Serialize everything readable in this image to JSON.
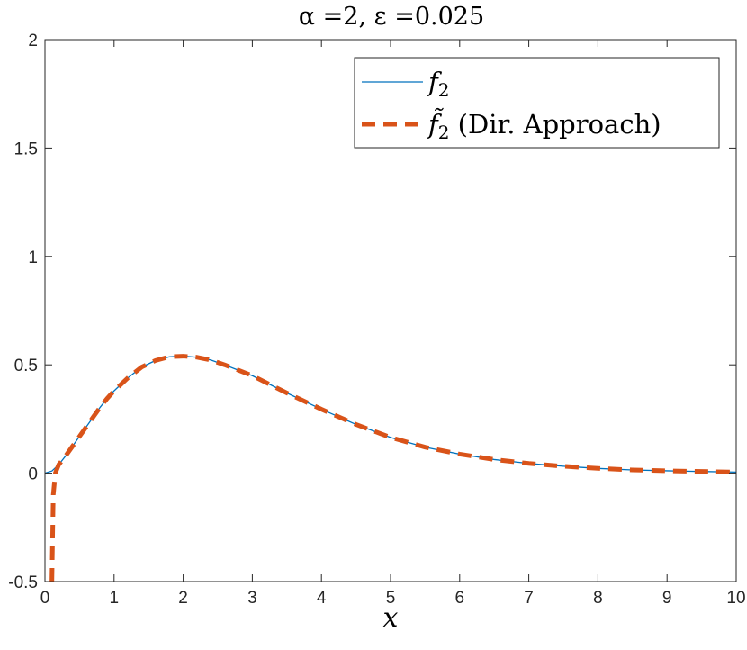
{
  "chart_data": {
    "type": "line",
    "title": "α =2, ε =0.025",
    "xlabel": "x",
    "ylabel": "",
    "xlim": [
      0,
      10
    ],
    "ylim": [
      -0.5,
      2
    ],
    "xticks": [
      0,
      1,
      2,
      3,
      4,
      5,
      6,
      7,
      8,
      9,
      10
    ],
    "xtick_labels": [
      "0",
      "1",
      "2",
      "3",
      "4",
      "5",
      "6",
      "7",
      "8",
      "9",
      "10"
    ],
    "yticks": [
      -0.5,
      0,
      0.5,
      1,
      1.5,
      2
    ],
    "ytick_labels": [
      "-0.5",
      "0",
      "0.5",
      "1",
      "1.5",
      "2"
    ],
    "grid": false,
    "legend_position": "top-right",
    "series": [
      {
        "name": "f2",
        "legend_symbol": "f",
        "legend_subscript": "2",
        "legend_suffix": "",
        "color": "#0072BD",
        "style": "solid",
        "x": [
          0,
          0.1,
          0.2,
          0.3,
          0.4,
          0.5,
          0.6,
          0.7,
          0.8,
          0.9,
          1.0,
          1.2,
          1.4,
          1.6,
          1.8,
          2.0,
          2.2,
          2.4,
          2.6,
          2.8,
          3.0,
          3.5,
          4.0,
          4.5,
          5.0,
          5.5,
          6.0,
          6.5,
          7.0,
          7.5,
          8.0,
          8.5,
          9.0,
          9.5,
          10.0
        ],
        "y": [
          0,
          0.01,
          0.04,
          0.08,
          0.125,
          0.17,
          0.215,
          0.26,
          0.305,
          0.345,
          0.38,
          0.44,
          0.49,
          0.52,
          0.537,
          0.54,
          0.535,
          0.522,
          0.5,
          0.475,
          0.45,
          0.37,
          0.295,
          0.225,
          0.165,
          0.12,
          0.088,
          0.063,
          0.045,
          0.032,
          0.022,
          0.015,
          0.011,
          0.008,
          0.005
        ]
      },
      {
        "name": "f̃2 (Dir. Approach)",
        "legend_symbol": "f̃",
        "legend_subscript": "2",
        "legend_suffix": " (Dir. Approach)",
        "color": "#D95319",
        "style": "dashed",
        "x": [
          0.1,
          0.12,
          0.15,
          0.2,
          0.3,
          0.4,
          0.5,
          0.6,
          0.7,
          0.8,
          0.9,
          1.0,
          1.2,
          1.4,
          1.6,
          1.8,
          2.0,
          2.2,
          2.4,
          2.6,
          2.8,
          3.0,
          3.5,
          4.0,
          4.5,
          5.0,
          5.5,
          6.0,
          6.5,
          7.0,
          7.5,
          8.0,
          8.5,
          9.0,
          9.5,
          10.0
        ],
        "y": [
          -0.5,
          -0.1,
          0.0,
          0.04,
          0.08,
          0.125,
          0.17,
          0.215,
          0.26,
          0.305,
          0.345,
          0.38,
          0.44,
          0.49,
          0.52,
          0.537,
          0.54,
          0.535,
          0.522,
          0.5,
          0.475,
          0.45,
          0.37,
          0.295,
          0.225,
          0.165,
          0.12,
          0.088,
          0.063,
          0.045,
          0.032,
          0.022,
          0.015,
          0.011,
          0.008,
          0.005
        ]
      }
    ]
  }
}
